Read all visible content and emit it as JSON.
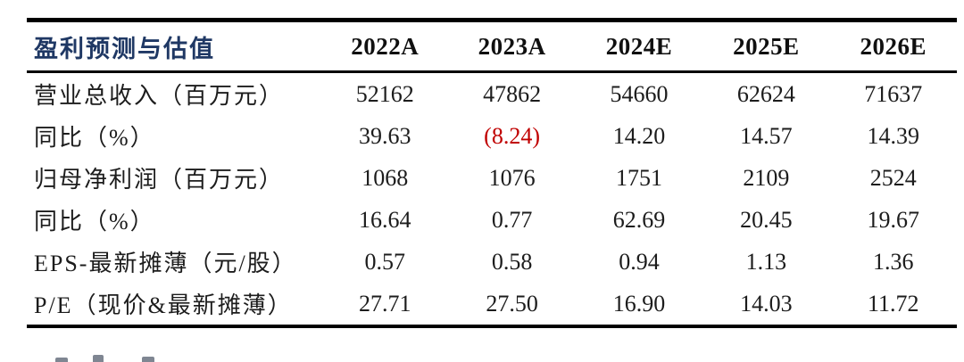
{
  "colors": {
    "title": "#1F3864",
    "header": "#101010",
    "body": "#1C1C1C",
    "negative": "#C00000",
    "line": "#000000",
    "background": "#FFFFFF"
  },
  "table": {
    "title": "盈利预测与估值",
    "columns": [
      "2022A",
      "2023A",
      "2024E",
      "2025E",
      "2026E"
    ],
    "rows": [
      {
        "label": "营业总收入（百万元）",
        "values": [
          "52162",
          "47862",
          "54660",
          "62624",
          "71637"
        ]
      },
      {
        "label": "同比（%）",
        "values": [
          "39.63",
          "(8.24)",
          "14.20",
          "14.57",
          "14.39"
        ]
      },
      {
        "label": "归母净利润（百万元）",
        "values": [
          "1068",
          "1076",
          "1751",
          "2109",
          "2524"
        ]
      },
      {
        "label": "同比（%）",
        "values": [
          "16.64",
          "0.77",
          "62.69",
          "20.45",
          "19.67"
        ]
      },
      {
        "label": "EPS-最新摊薄（元/股）",
        "values": [
          "0.57",
          "0.58",
          "0.94",
          "1.13",
          "1.36"
        ]
      },
      {
        "label": "P/E（现价&最新摊薄）",
        "values": [
          "27.71",
          "27.50",
          "16.90",
          "14.03",
          "11.72"
        ]
      }
    ]
  }
}
